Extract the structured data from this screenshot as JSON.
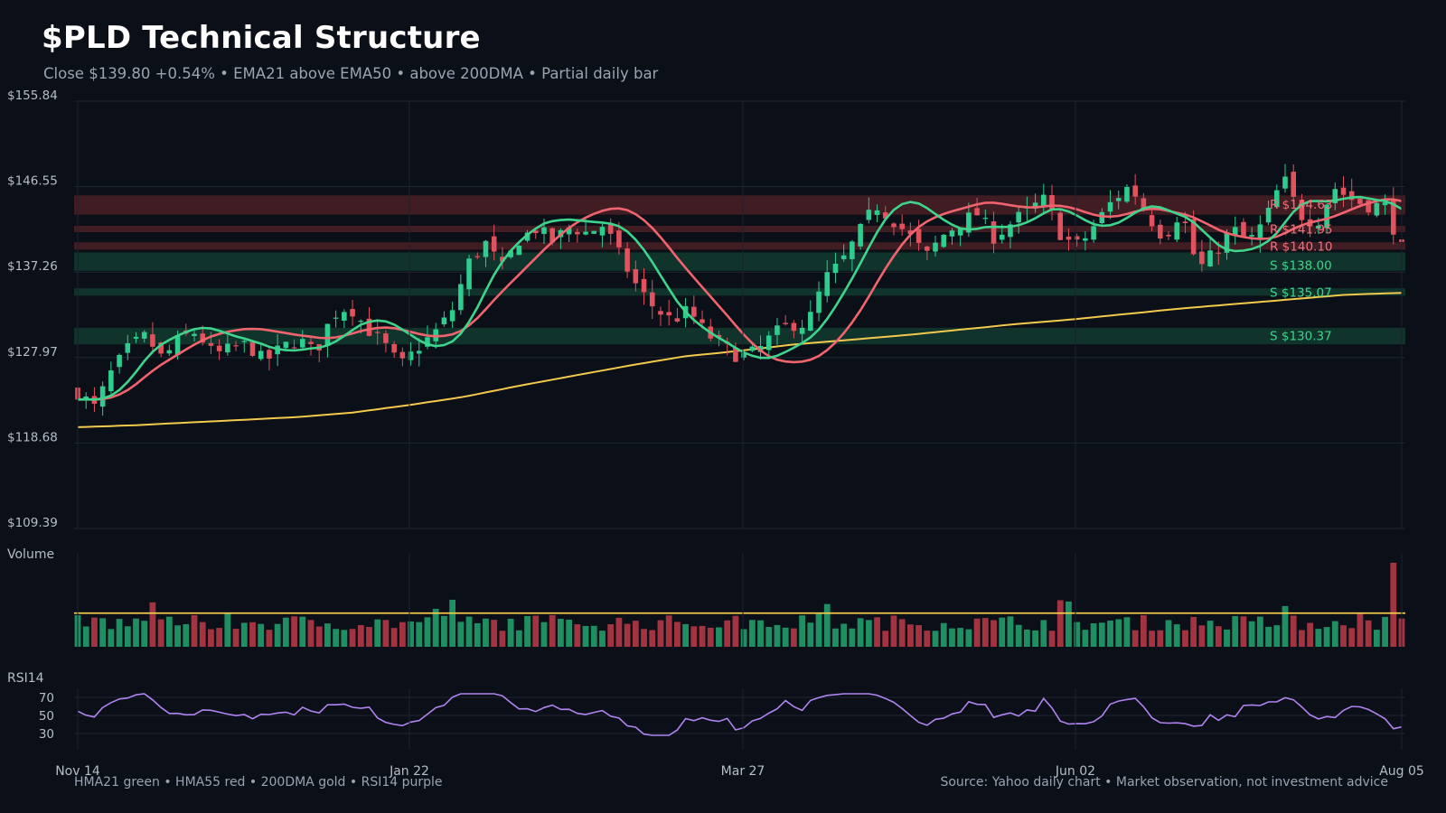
{
  "header": {
    "title": "$PLD Technical Structure",
    "subtitle": "Close $139.80  +0.54%  •  EMA21 above EMA50 • above 200DMA  •  Partial daily bar"
  },
  "footer": {
    "legend": "HMA21 green • HMA55 red • 200DMA gold  •  RSI14 purple",
    "source": "Source: Yahoo daily chart • Market observation, not investment advice"
  },
  "colors": {
    "background": "#0b0f17",
    "up": "#2ecc8f",
    "down": "#e0525d",
    "hma21": "#3fd48c",
    "hma55": "#f0646e",
    "dma200": "#f2c94c",
    "rsi": "#b083f0",
    "resistance_zone": "#4a1f26",
    "support_zone": "#12392f"
  },
  "chart_data": {
    "type": "candlestick",
    "price_panel": {
      "y_ticks": [
        "$155.84",
        "$146.55",
        "$137.26",
        "$127.97",
        "$118.68",
        "$109.39"
      ],
      "ylim": [
        109.39,
        155.84
      ]
    },
    "x_ticks": [
      "Nov 14",
      "Jan 22",
      "Mar 27",
      "Jun 02",
      "Aug 05"
    ],
    "levels": [
      {
        "label": "R $144.63",
        "value": 144.63,
        "kind": "resistance",
        "zone": [
          143.5,
          145.6
        ]
      },
      {
        "label": "R $141.95",
        "value": 141.95,
        "kind": "resistance",
        "zone": [
          141.6,
          142.3
        ]
      },
      {
        "label": "R $140.10",
        "value": 140.1,
        "kind": "resistance",
        "zone": [
          139.7,
          140.5
        ]
      },
      {
        "label": "S $138.00",
        "value": 138.0,
        "kind": "support",
        "zone": [
          137.4,
          139.4
        ]
      },
      {
        "label": "S $135.07",
        "value": 135.07,
        "kind": "support",
        "zone": [
          134.7,
          135.5
        ]
      },
      {
        "label": "S $130.37",
        "value": 130.37,
        "kind": "support",
        "zone": [
          129.4,
          131.2
        ]
      }
    ],
    "volume_panel": {
      "label": "Volume"
    },
    "rsi_panel": {
      "label": "RSI14",
      "ticks": [
        "70",
        "50",
        "30"
      ],
      "ylim": [
        20,
        80
      ]
    },
    "close_path": [
      124.2,
      122.5,
      126.4,
      129.0,
      130.3,
      127.8,
      130.0,
      130.8,
      128.2,
      128.9,
      129.4,
      127.5,
      129.0,
      130.0,
      128.4,
      132.6,
      133.6,
      131.2,
      129.5,
      127.0,
      129.0,
      130.6,
      132.8,
      138.2,
      140.5,
      137.6,
      140.8,
      142.0,
      140.6,
      142.2,
      141.5,
      142.4,
      138.8,
      135.5,
      133.3,
      132.0,
      133.1,
      130.6,
      129.2,
      128.0,
      128.6,
      130.5,
      131.6,
      131.6,
      136.5,
      138.3,
      141.4,
      144.6,
      143.0,
      141.2,
      139.0,
      141.3,
      142.7,
      143.6,
      141.0,
      142.6,
      144.0,
      145.2,
      141.0,
      140.1,
      142.6,
      145.1,
      146.7,
      143.5,
      141.0,
      144.0,
      137.5,
      139.4,
      142.0,
      140.5,
      143.0,
      147.6,
      143.5,
      142.6,
      146.5,
      145.2,
      144.5,
      144.5,
      139.8
    ],
    "dma200_path": [
      120.4,
      120.6,
      120.9,
      121.2,
      121.5,
      122.0,
      122.8,
      123.7,
      124.9,
      126.0,
      127.1,
      128.1,
      128.7,
      129.4,
      129.9,
      130.4,
      131.0,
      131.6,
      132.1,
      132.7,
      133.3,
      133.8,
      134.3,
      134.8,
      135.0
    ]
  }
}
